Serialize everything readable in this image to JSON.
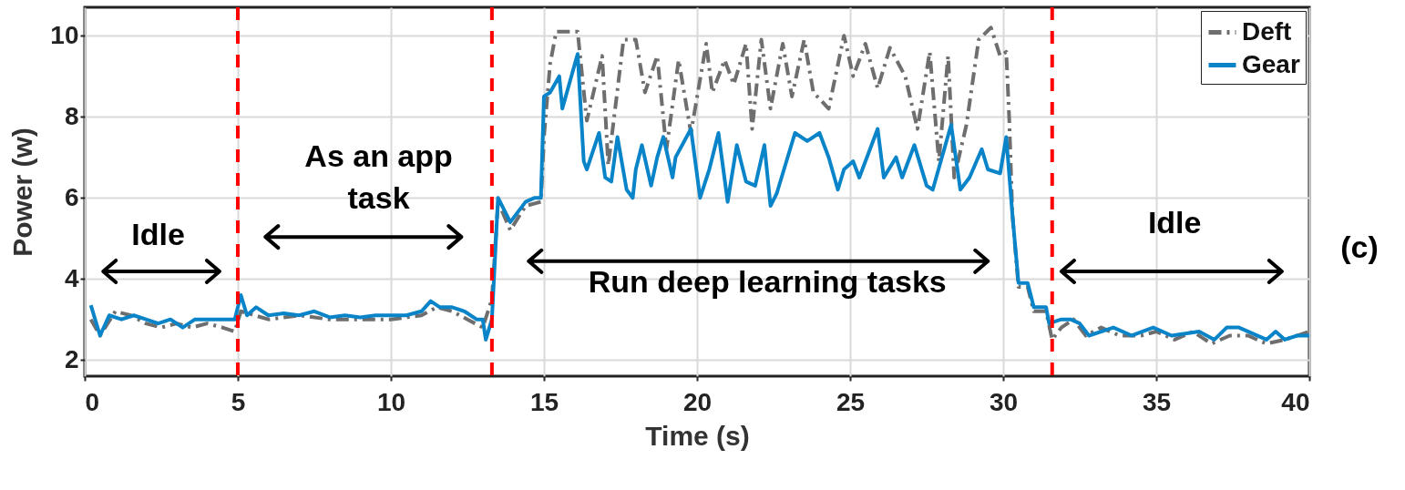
{
  "chart_data": {
    "type": "line",
    "xlabel": "Time (s)",
    "ylabel": "Power (w)",
    "xlim": [
      0,
      40
    ],
    "xticks": [
      0,
      5,
      10,
      15,
      20,
      25,
      30,
      35,
      40
    ],
    "ylim": [
      1.6,
      10.7
    ],
    "yticks": [
      2,
      4,
      6,
      8,
      10
    ],
    "grid": true,
    "legend": "top right",
    "series": [
      {
        "name": "Deft",
        "color": "#6e6e6e",
        "line_style": "dashed",
        "x": [
          0.2,
          0.5,
          1,
          1.5,
          2,
          2.5,
          3,
          3.5,
          4,
          4.5,
          4.9,
          5.1,
          6,
          7,
          8,
          9,
          10,
          11,
          11.5,
          12,
          12.5,
          13,
          13.3,
          13.5,
          13.9,
          14.4,
          14.9,
          15.0,
          15.2,
          15.4,
          16.1,
          16.4,
          16.9,
          17.1,
          17.6,
          18.0,
          18.3,
          18.7,
          19.0,
          19.4,
          19.8,
          20.3,
          20.5,
          20.9,
          21.2,
          21.6,
          21.8,
          22.1,
          22.4,
          22.8,
          23.1,
          23.5,
          23.8,
          24.3,
          24.8,
          25.1,
          25.5,
          25.9,
          26.3,
          26.8,
          27.2,
          27.6,
          27.9,
          28.2,
          28.4,
          28.8,
          29.2,
          29.6,
          29.9,
          30.1,
          30.2,
          30.3,
          30.5,
          30.8,
          31.0,
          31.4,
          31.6,
          31.9,
          32.3,
          32.7,
          33.2,
          33.8,
          34.5,
          35,
          35.6,
          36.2,
          36.8,
          37.4,
          38,
          38.6,
          39.2,
          40
        ],
        "values": [
          3.0,
          2.6,
          3.2,
          3.1,
          2.9,
          2.8,
          2.9,
          2.8,
          2.9,
          2.8,
          2.7,
          3.2,
          3.0,
          3.1,
          3.0,
          3.0,
          3.0,
          3.1,
          3.3,
          3.2,
          3.0,
          2.8,
          3.5,
          5.9,
          5.2,
          5.8,
          5.9,
          7.5,
          9.3,
          10.1,
          10.1,
          7.9,
          9.5,
          6.8,
          9.9,
          9.9,
          8.6,
          9.5,
          7.2,
          9.4,
          7.6,
          9.8,
          8.6,
          9.4,
          8.8,
          9.8,
          7.7,
          9.9,
          8.2,
          9.8,
          8.5,
          9.9,
          8.6,
          8.2,
          10.0,
          9.0,
          9.8,
          8.7,
          9.7,
          9.0,
          7.7,
          9.6,
          6.9,
          9.5,
          6.5,
          7.8,
          9.9,
          10.2,
          9.5,
          9.6,
          7.9,
          5.6,
          3.8,
          3.8,
          3.2,
          3.2,
          2.5,
          2.8,
          3.0,
          2.6,
          2.8,
          2.6,
          2.6,
          2.7,
          2.5,
          2.7,
          2.4,
          2.6,
          2.6,
          2.4,
          2.5,
          2.7
        ]
      },
      {
        "name": "Gear",
        "color": "#0a84c8",
        "line_style": "solid",
        "x": [
          0.2,
          0.5,
          0.8,
          1.2,
          1.6,
          2.0,
          2.4,
          2.8,
          3.2,
          3.6,
          4.0,
          4.4,
          4.9,
          5.1,
          5.3,
          5.6,
          6.0,
          6.5,
          7.0,
          7.5,
          8,
          8.5,
          9,
          9.5,
          10,
          10.5,
          11,
          11.3,
          11.6,
          12,
          12.4,
          12.8,
          13.0,
          13.1,
          13.3,
          13.5,
          13.9,
          14.4,
          14.7,
          14.9,
          15.0,
          15.2,
          15.5,
          15.6,
          16.1,
          16.3,
          16.4,
          16.8,
          17.0,
          17.2,
          17.4,
          17.7,
          17.9,
          18.0,
          18.2,
          18.5,
          18.7,
          18.9,
          19.2,
          19.3,
          19.8,
          20.1,
          20.4,
          20.7,
          21.0,
          21.3,
          21.6,
          21.9,
          22.2,
          22.4,
          22.6,
          23.2,
          23.6,
          24.0,
          24.3,
          24.6,
          24.8,
          25.1,
          25.3,
          25.9,
          26.1,
          26.5,
          26.7,
          27.1,
          27.5,
          27.7,
          28.3,
          28.6,
          28.9,
          29.3,
          29.5,
          29.9,
          30.1,
          30.3,
          30.5,
          30.8,
          31.0,
          31.4,
          31.5,
          31.9,
          32.2,
          32.5,
          32.8,
          33.6,
          34.2,
          34.9,
          35.5,
          36.4,
          36.9,
          37.3,
          37.7,
          38.6,
          38.9,
          39.2,
          39.6,
          40.0
        ],
        "values": [
          3.35,
          2.6,
          3.1,
          3.0,
          3.1,
          3.0,
          2.9,
          3.0,
          2.8,
          3.0,
          3.0,
          3.0,
          3.0,
          3.6,
          3.1,
          3.3,
          3.1,
          3.15,
          3.1,
          3.2,
          3.05,
          3.1,
          3.05,
          3.1,
          3.1,
          3.1,
          3.2,
          3.45,
          3.3,
          3.3,
          3.2,
          3.0,
          3.0,
          2.5,
          3.0,
          6.0,
          5.4,
          5.9,
          6.0,
          6.0,
          8.5,
          8.6,
          9.0,
          8.2,
          9.55,
          6.9,
          6.7,
          7.6,
          6.5,
          6.4,
          7.5,
          6.2,
          6.0,
          6.7,
          7.3,
          6.3,
          7.0,
          7.5,
          6.5,
          7.0,
          7.7,
          6.0,
          6.7,
          7.6,
          5.9,
          7.3,
          6.4,
          6.3,
          7.3,
          5.8,
          6.1,
          7.6,
          7.4,
          7.6,
          7.0,
          6.2,
          6.7,
          6.9,
          6.5,
          7.7,
          6.5,
          7.0,
          6.5,
          7.3,
          6.3,
          6.2,
          7.8,
          6.2,
          6.5,
          7.2,
          6.7,
          6.6,
          7.5,
          5.6,
          3.9,
          3.9,
          3.3,
          3.3,
          2.9,
          3.0,
          3.0,
          2.9,
          2.6,
          2.8,
          2.6,
          2.8,
          2.6,
          2.7,
          2.5,
          2.8,
          2.8,
          2.5,
          2.7,
          2.5,
          2.6,
          2.6
        ]
      }
    ],
    "ref_lines": [
      {
        "axis": "x",
        "value": 5,
        "color": "#ff0000",
        "line_style": "dashed"
      },
      {
        "axis": "x",
        "value": 13.3,
        "color": "#ff0000",
        "line_style": "dashed"
      },
      {
        "axis": "x",
        "value": 31.6,
        "color": "#ff0000",
        "line_style": "dashed"
      }
    ],
    "annotations": [
      "Idle",
      "As an app task",
      "Run deep learning tasks",
      "Idle",
      "(c)"
    ]
  }
}
